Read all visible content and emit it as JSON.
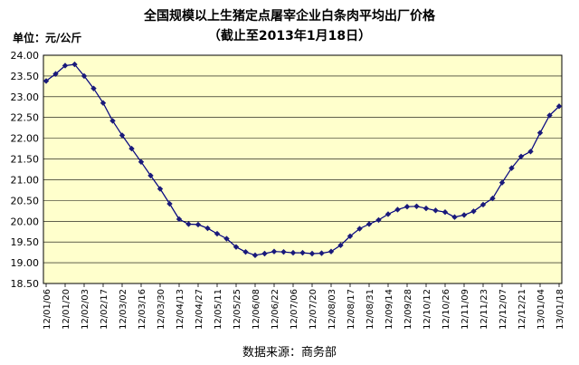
{
  "chart_data": {
    "type": "line",
    "title": "全国规模以上生猪定点屠宰企业白条肉平均出厂价格",
    "subtitle": "（截止至2013年1月18日）",
    "unit_label": "单位：元/公斤",
    "source": "数据来源：商务部",
    "ylim": [
      18.5,
      24.0
    ],
    "yticks": [
      "18.50",
      "19.00",
      "19.50",
      "20.00",
      "20.50",
      "21.00",
      "21.50",
      "22.00",
      "22.50",
      "23.00",
      "23.50",
      "24.00"
    ],
    "xtick_labels": [
      "12/01/06",
      "12/01/20",
      "12/02/03",
      "12/02/17",
      "12/03/02",
      "12/03/16",
      "12/03/30",
      "12/04/13",
      "12/04/27",
      "12/05/11",
      "12/05/25",
      "12/06/08",
      "12/06/22",
      "12/07/06",
      "12/07/20",
      "12/08/03",
      "12/08/17",
      "12/08/31",
      "12/09/14",
      "12/09/28",
      "12/10/12",
      "12/10/26",
      "12/11/09",
      "12/11/23",
      "12/12/07",
      "12/12/21",
      "13/01/04",
      "13/01/18"
    ],
    "x": [
      "12/01/06",
      "12/01/13",
      "12/01/20",
      "12/01/27",
      "12/02/03",
      "12/02/10",
      "12/02/17",
      "12/02/24",
      "12/03/02",
      "12/03/09",
      "12/03/16",
      "12/03/23",
      "12/03/30",
      "12/04/06",
      "12/04/13",
      "12/04/20",
      "12/04/27",
      "12/05/04",
      "12/05/11",
      "12/05/18",
      "12/05/25",
      "12/06/01",
      "12/06/08",
      "12/06/15",
      "12/06/22",
      "12/06/29",
      "12/07/06",
      "12/07/13",
      "12/07/20",
      "12/07/27",
      "12/08/03",
      "12/08/10",
      "12/08/17",
      "12/08/24",
      "12/08/31",
      "12/09/07",
      "12/09/14",
      "12/09/21",
      "12/09/28",
      "12/10/05",
      "12/10/12",
      "12/10/19",
      "12/10/26",
      "12/11/02",
      "12/11/09",
      "12/11/16",
      "12/11/23",
      "12/11/30",
      "12/12/07",
      "12/12/14",
      "12/12/21",
      "12/12/28",
      "13/01/04",
      "13/01/11",
      "13/01/18"
    ],
    "series": [
      {
        "values": [
          23.38,
          23.55,
          23.75,
          23.78,
          23.5,
          23.2,
          22.85,
          22.42,
          22.07,
          21.75,
          21.43,
          21.1,
          20.78,
          20.42,
          20.05,
          19.93,
          19.92,
          19.83,
          19.7,
          19.58,
          19.38,
          19.26,
          19.18,
          19.22,
          19.27,
          19.26,
          19.24,
          19.24,
          19.22,
          19.23,
          19.27,
          19.42,
          19.64,
          19.82,
          19.93,
          20.03,
          20.17,
          20.28,
          20.35,
          20.36,
          20.31,
          20.26,
          20.22,
          20.1,
          20.15,
          20.24,
          20.4,
          20.55,
          20.93,
          21.28,
          21.56,
          21.68,
          22.13,
          22.55,
          22.77
        ]
      }
    ],
    "colors": {
      "line": "#00007f",
      "marker": "#1a1a7a",
      "plot_bg": "#ffffcc",
      "grid": "#000000"
    }
  }
}
